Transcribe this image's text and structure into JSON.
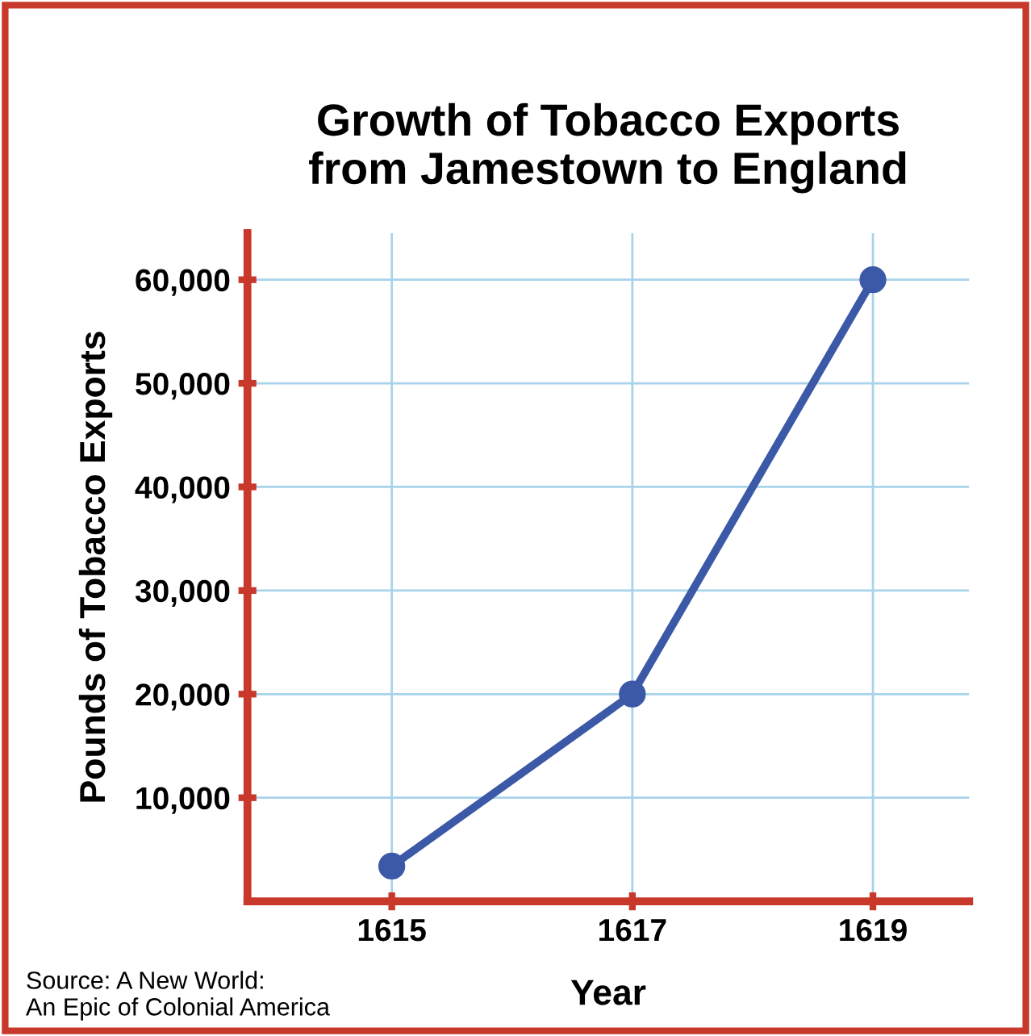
{
  "chart_data": {
    "type": "line",
    "title": "Growth of Tobacco Exports\nfrom Jamestown to England",
    "xlabel": "Year",
    "ylabel": "Pounds of Tobacco Exports",
    "x": [
      1615,
      1617,
      1619
    ],
    "series": [
      {
        "color": "#3c59a8",
        "values": [
          3400,
          20000,
          60000
        ]
      }
    ],
    "xlim": [
      1613.8,
      1619.8
    ],
    "xticks": [
      1615,
      1617,
      1619
    ],
    "ylim": [
      0,
      64500
    ],
    "yticks": [
      {
        "value": 10000,
        "label": "10,000"
      },
      {
        "value": 20000,
        "label": "20,000"
      },
      {
        "value": 30000,
        "label": "30,000"
      },
      {
        "value": 40000,
        "label": "40,000"
      },
      {
        "value": 50000,
        "label": "50,000"
      },
      {
        "value": 60000,
        "label": "60,000"
      }
    ],
    "grid": true,
    "marker": "circle",
    "line_style": "solid",
    "annotations": [
      "Source: A New World:\nAn Epic of Colonial America"
    ]
  }
}
